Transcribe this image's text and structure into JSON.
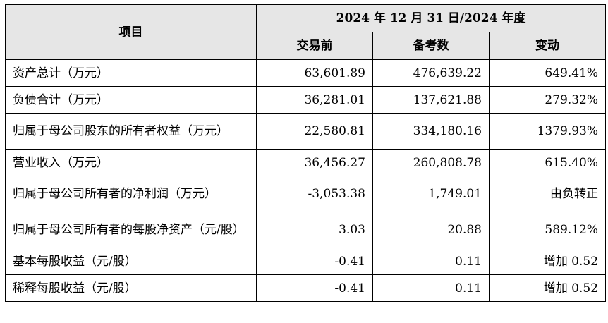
{
  "table": {
    "header": {
      "item": "项目",
      "period": "2024 年 12 月 31 日/2024 年度",
      "cols": [
        "交易前",
        "备考数",
        "变动"
      ]
    },
    "rows": [
      {
        "name": "资产总计（万元）",
        "before": "63,601.89",
        "pro_forma": "476,639.22",
        "change": "649.41%"
      },
      {
        "name": "负债合计（万元）",
        "before": "36,281.01",
        "pro_forma": "137,621.88",
        "change": "279.32%"
      },
      {
        "name": "归属于母公司股东的所有者权益（万元）",
        "before": "22,580.81",
        "pro_forma": "334,180.16",
        "change": "1379.93%"
      },
      {
        "name": "营业收入（万元）",
        "before": "36,456.27",
        "pro_forma": "260,808.78",
        "change": "615.40%"
      },
      {
        "name": "归属于母公司所有者的净利润（万元）",
        "before": "-3,053.38",
        "pro_forma": "1,749.01",
        "change": "由负转正"
      },
      {
        "name": "归属于母公司所有者的每股净资产（元/股）",
        "before": "3.03",
        "pro_forma": "20.88",
        "change": "589.12%"
      },
      {
        "name": "基本每股收益（元/股）",
        "before": "-0.41",
        "pro_forma": "0.11",
        "change": "增加 0.52"
      },
      {
        "name": "稀释每股收益（元/股）",
        "before": "-0.41",
        "pro_forma": "0.11",
        "change": "增加 0.52"
      }
    ]
  }
}
